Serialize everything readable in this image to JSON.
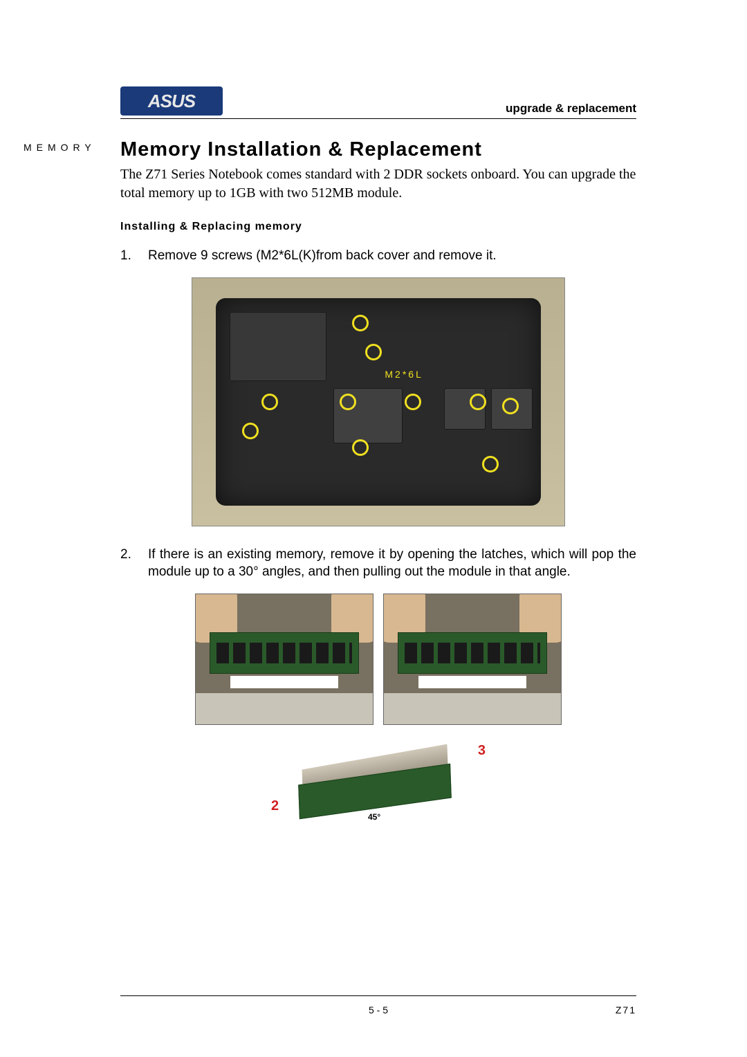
{
  "header": {
    "brand": "ASUS",
    "section_label": "upgrade & replacement"
  },
  "side_label": "MEMORY",
  "title": "Memory Installation & Replacement",
  "intro": "The Z71 Series Notebook comes standard with 2 DDR sockets onboard.   You can upgrade the total memory up to 1GB with two 512MB module.",
  "subheading": "Installing & Replacing memory",
  "steps": [
    {
      "num": "1.",
      "text": "Remove 9 screws (M2*6L(K)from back cover and remove it."
    },
    {
      "num": "2.",
      "text": "If there is an existing memory, remove it by opening the latches, which will pop the module up to a 30° angles, and then pulling out the module in that angle."
    }
  ],
  "figure1": {
    "screw_label": "M2*6L",
    "marker_color": "#f0e020",
    "bg_color": "#2a2a2a"
  },
  "figure3": {
    "angle_label": "45°",
    "red_labels": [
      "2",
      "3"
    ]
  },
  "footer": {
    "page": "5 - 5",
    "model": "Z71"
  },
  "colors": {
    "text": "#000000",
    "logo_bg": "#1a3a7a",
    "screw_ring": "#f0e020",
    "pcb_green": "#2a5a2a"
  }
}
